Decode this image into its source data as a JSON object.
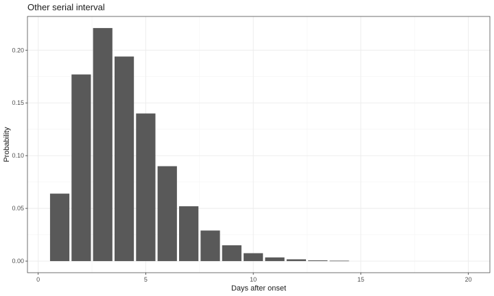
{
  "chart_data": {
    "type": "bar",
    "title": "Other serial interval",
    "xlabel": "Days after onset",
    "ylabel": "Probability",
    "xlim": [
      -0.5,
      21
    ],
    "ylim": [
      -0.011,
      0.232
    ],
    "x_ticks": [
      0,
      5,
      10,
      15,
      20
    ],
    "y_ticks": [
      0.0,
      0.05,
      0.1,
      0.15,
      0.2
    ],
    "x_tick_labels": [
      "0",
      "5",
      "10",
      "15",
      "20"
    ],
    "y_tick_labels": [
      "0.00",
      "0.05",
      "0.10",
      "0.15",
      "0.20"
    ],
    "grid": true,
    "bar_color": "#595959",
    "x": [
      1,
      2,
      3,
      4,
      5,
      6,
      7,
      8,
      9,
      10,
      11,
      12,
      13,
      14
    ],
    "values": [
      0.064,
      0.177,
      0.221,
      0.194,
      0.14,
      0.09,
      0.052,
      0.029,
      0.015,
      0.0075,
      0.0035,
      0.0017,
      0.0007,
      0.0004
    ]
  }
}
